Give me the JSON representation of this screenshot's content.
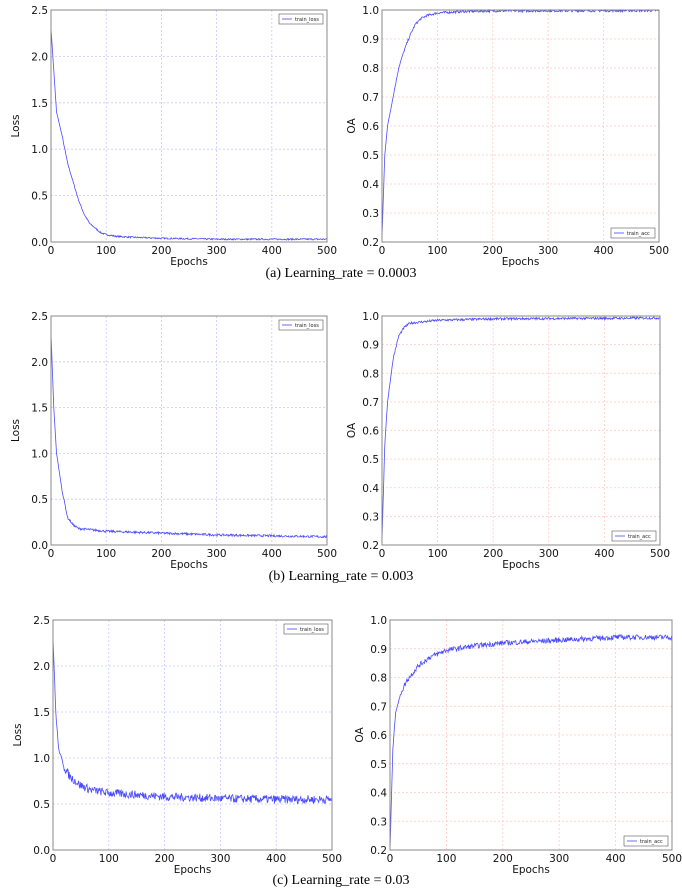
{
  "chart_data": [
    {
      "type": "line",
      "panel": "a-loss",
      "xlabel": "Epochs",
      "ylabel": "Loss",
      "xlim": [
        0,
        500
      ],
      "ylim": [
        0,
        2.5
      ],
      "xticks": [
        "0",
        "100",
        "200",
        "300",
        "400",
        "500"
      ],
      "yticks": [
        "0.0",
        "0.5",
        "1.0",
        "1.5",
        "2.0",
        "2.5"
      ],
      "grid": true,
      "grid_color": "#c8c8ff",
      "legend": "top-right",
      "series": [
        {
          "name": "train_loss",
          "color": "#4a4aff",
          "noise_amplitude": 0.008,
          "x": [
            0,
            10,
            20,
            30,
            40,
            50,
            60,
            70,
            80,
            90,
            100,
            120,
            150,
            200,
            300,
            400,
            500
          ],
          "y": [
            2.3,
            1.4,
            1.15,
            0.85,
            0.65,
            0.45,
            0.3,
            0.2,
            0.15,
            0.1,
            0.08,
            0.06,
            0.05,
            0.04,
            0.03,
            0.03,
            0.03
          ]
        }
      ]
    },
    {
      "type": "line",
      "panel": "a-acc",
      "xlabel": "Epochs",
      "ylabel": "OA",
      "xlim": [
        0,
        500
      ],
      "ylim": [
        0.2,
        1.0
      ],
      "xticks": [
        "0",
        "100",
        "200",
        "300",
        "400",
        "500"
      ],
      "yticks": [
        "0.2",
        "0.3",
        "0.4",
        "0.5",
        "0.6",
        "0.7",
        "0.8",
        "0.9",
        "1.0"
      ],
      "grid": true,
      "grid_color": "#ffc8c8",
      "legend": "bottom-right",
      "series": [
        {
          "name": "train_acc",
          "color": "#4a4aff",
          "noise_amplitude": 0.004,
          "x": [
            0,
            5,
            10,
            20,
            30,
            40,
            50,
            60,
            70,
            80,
            100,
            150,
            200,
            500
          ],
          "y": [
            0.22,
            0.5,
            0.6,
            0.7,
            0.8,
            0.86,
            0.91,
            0.95,
            0.97,
            0.98,
            0.99,
            0.995,
            0.997,
            0.998
          ]
        }
      ]
    },
    {
      "type": "line",
      "panel": "b-loss",
      "xlabel": "Epochs",
      "ylabel": "Loss",
      "xlim": [
        0,
        500
      ],
      "ylim": [
        0,
        2.5
      ],
      "xticks": [
        "0",
        "100",
        "200",
        "300",
        "400",
        "500"
      ],
      "yticks": [
        "0.0",
        "0.5",
        "1.0",
        "1.5",
        "2.0",
        "2.5"
      ],
      "grid": true,
      "grid_color": "#c8c8ff",
      "legend": "top-right",
      "series": [
        {
          "name": "train_loss",
          "color": "#4a4aff",
          "noise_amplitude": 0.012,
          "x": [
            0,
            5,
            10,
            20,
            30,
            40,
            50,
            100,
            200,
            300,
            400,
            500
          ],
          "y": [
            2.3,
            1.5,
            1.0,
            0.6,
            0.3,
            0.22,
            0.18,
            0.15,
            0.13,
            0.11,
            0.1,
            0.09
          ]
        }
      ]
    },
    {
      "type": "line",
      "panel": "b-acc",
      "xlabel": "Epochs",
      "ylabel": "OA",
      "xlim": [
        0,
        500
      ],
      "ylim": [
        0.2,
        1.0
      ],
      "xticks": [
        "0",
        "100",
        "200",
        "300",
        "400",
        "500"
      ],
      "yticks": [
        "0.2",
        "0.3",
        "0.4",
        "0.5",
        "0.6",
        "0.7",
        "0.8",
        "0.9",
        "1.0"
      ],
      "grid": true,
      "grid_color": "#ffc8c8",
      "legend": "bottom-right",
      "series": [
        {
          "name": "train_acc",
          "color": "#4a4aff",
          "noise_amplitude": 0.004,
          "x": [
            0,
            5,
            10,
            20,
            30,
            40,
            50,
            100,
            200,
            500
          ],
          "y": [
            0.22,
            0.55,
            0.7,
            0.85,
            0.93,
            0.96,
            0.975,
            0.985,
            0.99,
            0.993
          ]
        }
      ]
    },
    {
      "type": "line",
      "panel": "c-loss",
      "xlabel": "Epochs",
      "ylabel": "Loss",
      "xlim": [
        0,
        500
      ],
      "ylim": [
        0,
        2.5
      ],
      "xticks": [
        "0",
        "100",
        "200",
        "300",
        "400",
        "500"
      ],
      "yticks": [
        "0.0",
        "0.5",
        "1.0",
        "1.5",
        "2.0",
        "2.5"
      ],
      "grid": true,
      "grid_color": "#c8c8ff",
      "legend": "top-right",
      "series": [
        {
          "name": "train_loss",
          "color": "#4a4aff",
          "noise_amplitude": 0.045,
          "x": [
            0,
            5,
            10,
            20,
            30,
            50,
            70,
            100,
            200,
            300,
            400,
            500
          ],
          "y": [
            2.3,
            1.5,
            1.1,
            0.9,
            0.8,
            0.7,
            0.65,
            0.62,
            0.58,
            0.56,
            0.55,
            0.55
          ]
        }
      ]
    },
    {
      "type": "line",
      "panel": "c-acc",
      "xlabel": "Epochs",
      "ylabel": "OA",
      "xlim": [
        0,
        500
      ],
      "ylim": [
        0.2,
        1.0
      ],
      "xticks": [
        "0",
        "100",
        "200",
        "300",
        "400",
        "500"
      ],
      "yticks": [
        "0.2",
        "0.3",
        "0.4",
        "0.5",
        "0.6",
        "0.7",
        "0.8",
        "0.9",
        "1.0"
      ],
      "grid": true,
      "grid_color": "#ffc8c8",
      "legend": "bottom-right",
      "series": [
        {
          "name": "train_acc",
          "color": "#4a4aff",
          "noise_amplitude": 0.009,
          "x": [
            0,
            5,
            10,
            20,
            30,
            50,
            70,
            100,
            150,
            200,
            300,
            400,
            500
          ],
          "y": [
            0.2,
            0.55,
            0.68,
            0.75,
            0.79,
            0.84,
            0.87,
            0.895,
            0.91,
            0.92,
            0.93,
            0.94,
            0.94
          ]
        }
      ]
    }
  ],
  "captions": {
    "a": "(a) Learning_rate = 0.0003",
    "b": "(b) Learning_rate = 0.003",
    "c": "(c) Learning_rate = 0.03"
  }
}
